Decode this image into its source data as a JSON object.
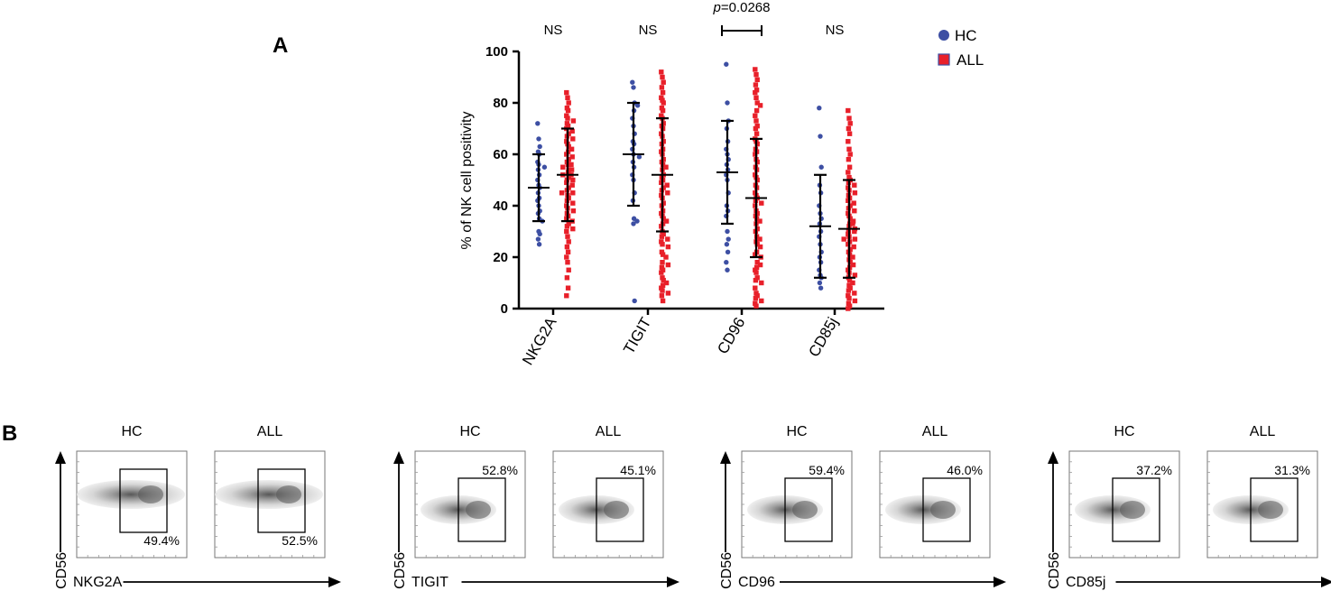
{
  "panels": {
    "a_label": "A",
    "b_label": "B"
  },
  "chart_data": {
    "type": "scatter",
    "title": "",
    "xlabel": "",
    "ylabel": "% of NK cell positivity",
    "ylim": [
      0,
      100
    ],
    "yticks": [
      0,
      20,
      40,
      60,
      80,
      100
    ],
    "categories": [
      "NKG2A",
      "TIGIT",
      "CD96",
      "CD85j"
    ],
    "legend": {
      "position": "top-right",
      "entries": [
        "HC",
        "ALL"
      ]
    },
    "series": [
      {
        "name": "HC",
        "color": "#3d4fa3",
        "marker": "circle",
        "mean": [
          47,
          60,
          53,
          32
        ],
        "sd": [
          13,
          20,
          20,
          20
        ],
        "points": [
          [
            72,
            66,
            63,
            61,
            60,
            57,
            56,
            55,
            54,
            52,
            50,
            48,
            47,
            45,
            43,
            42,
            40,
            38,
            37,
            35,
            34,
            30,
            29,
            27,
            25
          ],
          [
            88,
            86,
            80,
            79,
            77,
            74,
            71,
            68,
            65,
            64,
            62,
            60,
            59,
            57,
            55,
            52,
            50,
            45,
            42,
            35,
            34,
            33,
            3
          ],
          [
            95,
            80,
            73,
            70,
            65,
            62,
            60,
            58,
            56,
            54,
            52,
            50,
            45,
            40,
            38,
            36,
            30,
            27,
            25,
            22,
            18,
            15
          ],
          [
            78,
            67,
            55,
            48,
            45,
            40,
            37,
            35,
            33,
            30,
            28,
            25,
            22,
            20,
            18,
            15,
            13,
            12,
            10,
            8
          ]
        ]
      },
      {
        "name": "ALL",
        "color": "#e8202a",
        "marker": "square",
        "mean": [
          52,
          52,
          43,
          31
        ],
        "sd": [
          18,
          22,
          23,
          19
        ],
        "points": [
          [
            84,
            82,
            80,
            78,
            77,
            75,
            74,
            73,
            72,
            71,
            70,
            69,
            68,
            67,
            66,
            65,
            64,
            63,
            62,
            61,
            60,
            59,
            58,
            57,
            56,
            56,
            55,
            54,
            54,
            53,
            52,
            52,
            51,
            50,
            50,
            49,
            48,
            47,
            46,
            45,
            45,
            44,
            43,
            42,
            41,
            40,
            39,
            38,
            37,
            36,
            35,
            34,
            33,
            32,
            31,
            30,
            28,
            26,
            24,
            22,
            20,
            18,
            15,
            12,
            8,
            5
          ],
          [
            92,
            90,
            88,
            86,
            84,
            82,
            81,
            80,
            78,
            77,
            75,
            74,
            72,
            71,
            70,
            68,
            67,
            65,
            64,
            62,
            61,
            60,
            58,
            57,
            56,
            55,
            54,
            52,
            51,
            50,
            49,
            48,
            47,
            46,
            45,
            44,
            43,
            41,
            40,
            38,
            37,
            36,
            35,
            34,
            33,
            32,
            30,
            29,
            28,
            27,
            26,
            25,
            24,
            22,
            21,
            20,
            18,
            17,
            16,
            15,
            14,
            12,
            11,
            10,
            9,
            8,
            7,
            6,
            5,
            3
          ],
          [
            93,
            91,
            89,
            87,
            85,
            84,
            82,
            80,
            79,
            77,
            75,
            73,
            71,
            70,
            68,
            66,
            65,
            64,
            62,
            61,
            60,
            58,
            57,
            55,
            54,
            52,
            51,
            50,
            48,
            47,
            45,
            44,
            43,
            42,
            41,
            40,
            38,
            37,
            36,
            35,
            34,
            33,
            31,
            30,
            28,
            27,
            26,
            25,
            24,
            22,
            21,
            20,
            18,
            17,
            16,
            15,
            14,
            12,
            11,
            10,
            8,
            6,
            5,
            4,
            3,
            2,
            1
          ],
          [
            77,
            74,
            72,
            70,
            68,
            65,
            62,
            60,
            58,
            55,
            53,
            51,
            50,
            49,
            48,
            47,
            46,
            45,
            44,
            43,
            42,
            41,
            40,
            39,
            38,
            37,
            36,
            35,
            34,
            33,
            33,
            32,
            31,
            30,
            30,
            29,
            28,
            27,
            27,
            26,
            25,
            24,
            23,
            22,
            21,
            20,
            19,
            18,
            17,
            16,
            15,
            14,
            13,
            12,
            11,
            10,
            9,
            8,
            7,
            6,
            5,
            4,
            3,
            2,
            1,
            0
          ]
        ]
      }
    ],
    "annotations": [
      {
        "category": "NKG2A",
        "text": "NS"
      },
      {
        "category": "TIGIT",
        "text": "NS"
      },
      {
        "category": "CD96",
        "text": "=0.0268",
        "p_prefix": "p",
        "bracket": true
      },
      {
        "category": "CD85j",
        "text": "NS"
      }
    ]
  },
  "flow_panels": {
    "y_label": "CD56",
    "groups": [
      {
        "marker": "NKG2A",
        "hc_header": "HC",
        "all_header": "ALL",
        "hc_pct": "49.4%",
        "all_pct": "52.5%"
      },
      {
        "marker": "TIGIT",
        "hc_header": "HC",
        "all_header": "ALL",
        "hc_pct": "52.8%",
        "all_pct": "45.1%"
      },
      {
        "marker": "CD96",
        "hc_header": "HC",
        "all_header": "ALL",
        "hc_pct": "59.4%",
        "all_pct": "46.0%"
      },
      {
        "marker": "CD85j",
        "hc_header": "HC",
        "all_header": "ALL",
        "hc_pct": "37.2%",
        "all_pct": "31.3%"
      }
    ]
  }
}
